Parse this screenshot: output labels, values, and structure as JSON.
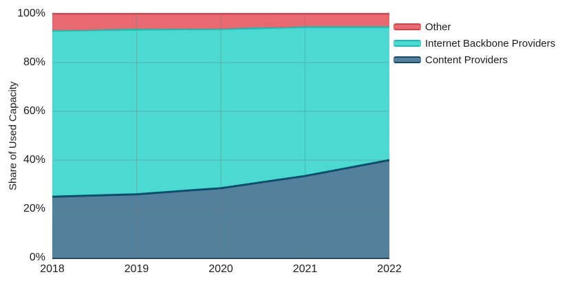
{
  "chart_data": {
    "type": "area",
    "stacked": true,
    "title": "",
    "xlabel": "",
    "ylabel": "Share of Used Capacity",
    "x": [
      2018,
      2019,
      2020,
      2021,
      2022
    ],
    "x_tick_labels": [
      "2018",
      "2019",
      "2020",
      "2021",
      "2022"
    ],
    "y_ticks": [
      0,
      20,
      40,
      60,
      80,
      100
    ],
    "y_tick_labels": [
      "0%",
      "20%",
      "40%",
      "60%",
      "80%",
      "100%"
    ],
    "ylim": [
      0,
      100
    ],
    "grid": true,
    "legend_position": "right",
    "series": [
      {
        "name": "Content Providers",
        "values": [
          25,
          26,
          28.5,
          33.5,
          40
        ],
        "fill_color": "#53809B",
        "line_color": "#15496C"
      },
      {
        "name": "Internet Backbone Providers",
        "values": [
          68,
          67.5,
          65.2,
          61,
          54.5
        ],
        "fill_color": "#4CD9D1",
        "line_color": "#13BFB4"
      },
      {
        "name": "Other",
        "values": [
          7,
          6.5,
          6.3,
          5.5,
          5.5
        ],
        "fill_color": "#E8696F",
        "line_color": "#D7414B"
      }
    ],
    "legend_display_order": [
      2,
      1,
      0
    ],
    "colors": {
      "grid_line": "rgba(110,125,140,0.35)",
      "axis_line": "#3A4147",
      "text": "#1c1c1c",
      "background": "#ffffff"
    }
  }
}
